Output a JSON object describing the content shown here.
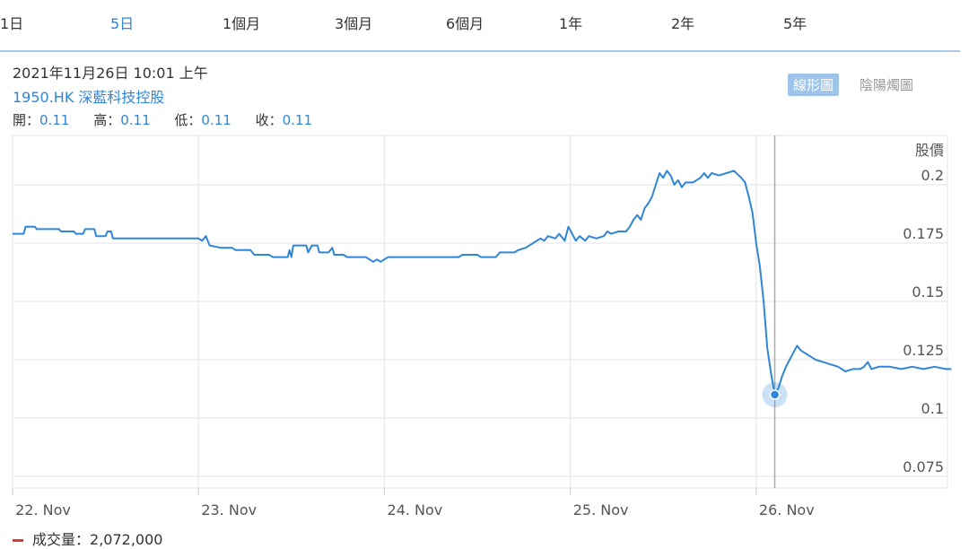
{
  "range_tabs": [
    "1日",
    "5日",
    "1個月",
    "3個月",
    "6個月",
    "1年",
    "2年",
    "5年"
  ],
  "active_range": "5日",
  "header": {
    "date": "2021年11月26日 10:01 上午",
    "symbol": "1950.HK 深藍科技控股",
    "ohlc": [
      {
        "label": "開：",
        "value": "0.11"
      },
      {
        "label": "高：",
        "value": "0.11"
      },
      {
        "label": "低：",
        "value": "0.11"
      },
      {
        "label": "收：",
        "value": "0.11"
      }
    ]
  },
  "chart_toggle": {
    "line": "線形圖",
    "candle": "陰陽燭圖"
  },
  "volume": {
    "label": "成交量：",
    "value": "2,072,000"
  },
  "colors": {
    "line": "#2f86d6",
    "accent": "#2f86d6",
    "grid": "#e3e3e3",
    "volume_marker": "#d83a2f"
  },
  "chart_data": {
    "type": "line",
    "ylabel": "股價",
    "xlabel": "",
    "ylim": [
      0.075,
      0.2
    ],
    "yticks": [
      "0.075",
      "0.1",
      "0.125",
      "0.15",
      "0.175",
      "0.2"
    ],
    "x_ticks": [
      "22. Nov",
      "23. Nov",
      "24. Nov",
      "25. Nov",
      "26. Nov"
    ],
    "xlim": [
      0,
      5.05
    ],
    "grid": true,
    "legend": "none",
    "crosshair": {
      "x": 4.1,
      "y": 0.11
    },
    "series": [
      {
        "values": [
          [
            0,
            0.179
          ],
          [
            0.06,
            0.179
          ],
          [
            0.07,
            0.182
          ],
          [
            0.12,
            0.182
          ],
          [
            0.13,
            0.181
          ],
          [
            0.25,
            0.181
          ],
          [
            0.26,
            0.18
          ],
          [
            0.33,
            0.18
          ],
          [
            0.34,
            0.179
          ],
          [
            0.38,
            0.179
          ],
          [
            0.39,
            0.181
          ],
          [
            0.44,
            0.181
          ],
          [
            0.45,
            0.178
          ],
          [
            0.5,
            0.178
          ],
          [
            0.51,
            0.18
          ],
          [
            0.53,
            0.18
          ],
          [
            0.54,
            0.177
          ],
          [
            1.0,
            0.177
          ],
          [
            1.02,
            0.176
          ],
          [
            1.04,
            0.178
          ],
          [
            1.06,
            0.174
          ],
          [
            1.12,
            0.173
          ],
          [
            1.18,
            0.173
          ],
          [
            1.2,
            0.172
          ],
          [
            1.28,
            0.172
          ],
          [
            1.3,
            0.17
          ],
          [
            1.38,
            0.17
          ],
          [
            1.4,
            0.169
          ],
          [
            1.48,
            0.169
          ],
          [
            1.49,
            0.172
          ],
          [
            1.5,
            0.169
          ],
          [
            1.51,
            0.174
          ],
          [
            1.58,
            0.174
          ],
          [
            1.59,
            0.171
          ],
          [
            1.61,
            0.174
          ],
          [
            1.64,
            0.174
          ],
          [
            1.65,
            0.171
          ],
          [
            1.7,
            0.171
          ],
          [
            1.72,
            0.173
          ],
          [
            1.73,
            0.17
          ],
          [
            1.78,
            0.17
          ],
          [
            1.8,
            0.169
          ],
          [
            1.9,
            0.169
          ],
          [
            1.92,
            0.168
          ],
          [
            1.94,
            0.167
          ],
          [
            1.96,
            0.168
          ],
          [
            1.98,
            0.167
          ],
          [
            2.0,
            0.168
          ],
          [
            2.02,
            0.169
          ],
          [
            2.4,
            0.169
          ],
          [
            2.42,
            0.17
          ],
          [
            2.5,
            0.17
          ],
          [
            2.52,
            0.169
          ],
          [
            2.6,
            0.169
          ],
          [
            2.62,
            0.171
          ],
          [
            2.7,
            0.171
          ],
          [
            2.72,
            0.172
          ],
          [
            2.76,
            0.173
          ],
          [
            2.8,
            0.175
          ],
          [
            2.84,
            0.177
          ],
          [
            2.86,
            0.176
          ],
          [
            2.88,
            0.178
          ],
          [
            2.92,
            0.177
          ],
          [
            2.94,
            0.179
          ],
          [
            2.97,
            0.176
          ],
          [
            2.99,
            0.182
          ],
          [
            3.01,
            0.179
          ],
          [
            3.03,
            0.176
          ],
          [
            3.05,
            0.178
          ],
          [
            3.08,
            0.176
          ],
          [
            3.1,
            0.178
          ],
          [
            3.14,
            0.177
          ],
          [
            3.18,
            0.178
          ],
          [
            3.2,
            0.18
          ],
          [
            3.22,
            0.179
          ],
          [
            3.26,
            0.18
          ],
          [
            3.3,
            0.18
          ],
          [
            3.32,
            0.182
          ],
          [
            3.34,
            0.185
          ],
          [
            3.36,
            0.187
          ],
          [
            3.38,
            0.185
          ],
          [
            3.4,
            0.19
          ],
          [
            3.42,
            0.192
          ],
          [
            3.44,
            0.195
          ],
          [
            3.46,
            0.2
          ],
          [
            3.48,
            0.205
          ],
          [
            3.5,
            0.203
          ],
          [
            3.52,
            0.206
          ],
          [
            3.54,
            0.204
          ],
          [
            3.56,
            0.2
          ],
          [
            3.58,
            0.202
          ],
          [
            3.6,
            0.199
          ],
          [
            3.62,
            0.201
          ],
          [
            3.66,
            0.201
          ],
          [
            3.7,
            0.203
          ],
          [
            3.72,
            0.205
          ],
          [
            3.74,
            0.203
          ],
          [
            3.76,
            0.205
          ],
          [
            3.8,
            0.204
          ],
          [
            3.84,
            0.205
          ],
          [
            3.88,
            0.206
          ],
          [
            3.92,
            0.203
          ],
          [
            3.94,
            0.201
          ],
          [
            3.96,
            0.195
          ],
          [
            3.98,
            0.188
          ],
          [
            4.0,
            0.175
          ],
          [
            4.02,
            0.165
          ],
          [
            4.04,
            0.15
          ],
          [
            4.06,
            0.13
          ],
          [
            4.08,
            0.119
          ],
          [
            4.1,
            0.11
          ],
          [
            4.12,
            0.113
          ],
          [
            4.14,
            0.118
          ],
          [
            4.16,
            0.122
          ],
          [
            4.18,
            0.125
          ],
          [
            4.2,
            0.128
          ],
          [
            4.22,
            0.131
          ],
          [
            4.24,
            0.129
          ],
          [
            4.28,
            0.127
          ],
          [
            4.32,
            0.125
          ],
          [
            4.36,
            0.124
          ],
          [
            4.4,
            0.123
          ],
          [
            4.44,
            0.122
          ],
          [
            4.48,
            0.12
          ],
          [
            4.52,
            0.121
          ],
          [
            4.56,
            0.121
          ],
          [
            4.58,
            0.122
          ],
          [
            4.6,
            0.124
          ],
          [
            4.62,
            0.121
          ],
          [
            4.66,
            0.122
          ],
          [
            4.72,
            0.122
          ],
          [
            4.78,
            0.121
          ],
          [
            4.84,
            0.122
          ],
          [
            4.9,
            0.121
          ],
          [
            4.96,
            0.122
          ],
          [
            5.02,
            0.121
          ],
          [
            5.05,
            0.121
          ]
        ]
      }
    ]
  }
}
